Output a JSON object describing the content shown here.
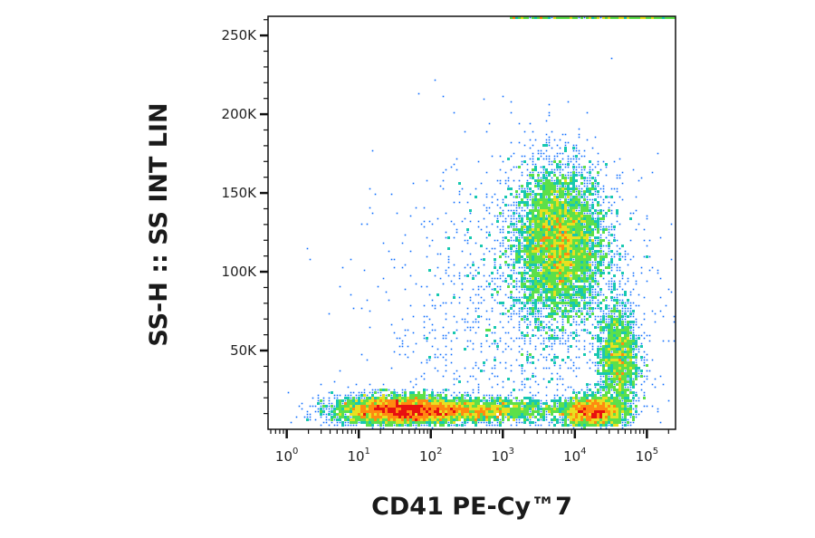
{
  "chart_data": {
    "type": "scatter",
    "subtype": "flow-cytometry-density-dot-plot",
    "xlabel": "CD41 PE-Cy™7",
    "ylabel": "SS-H :: SS INT LIN",
    "x_scale": "log",
    "x_ticks": [
      {
        "value": 1,
        "base": "10",
        "exp": "0"
      },
      {
        "value": 10,
        "base": "10",
        "exp": "1"
      },
      {
        "value": 100,
        "base": "10",
        "exp": "2"
      },
      {
        "value": 1000,
        "base": "10",
        "exp": "3"
      },
      {
        "value": 10000,
        "base": "10",
        "exp": "4"
      },
      {
        "value": 100000,
        "base": "10",
        "exp": "5"
      }
    ],
    "y_scale": "linear",
    "y_ticks": [
      {
        "value": 50000,
        "label": "50K"
      },
      {
        "value": 100000,
        "label": "100K"
      },
      {
        "value": 150000,
        "label": "150K"
      },
      {
        "value": 200000,
        "label": "200K"
      },
      {
        "value": 250000,
        "label": "250K"
      }
    ],
    "xlim": [
      0.55,
      250000
    ],
    "ylim": [
      0,
      262144
    ],
    "grid": false,
    "legend": "none",
    "color_scale": [
      "#0000c8",
      "#0a6cff",
      "#18c8b0",
      "#5ce04a",
      "#e8e020",
      "#ff8a10",
      "#e81010"
    ],
    "populations": [
      {
        "center_x": 6000,
        "center_y": 118000,
        "spread_log_x": 0.33,
        "spread_y": 25000,
        "points": 5200,
        "peak_color": "#5ce04a"
      },
      {
        "center_x": 35,
        "center_y": 12000,
        "spread_log_x": 0.45,
        "spread_y": 5000,
        "points": 3600,
        "peak_color": "#e81010"
      },
      {
        "center_x": 18000,
        "center_y": 11000,
        "spread_log_x": 0.25,
        "spread_y": 5000,
        "points": 1800,
        "peak_color": "#e81010"
      },
      {
        "center_x": 400,
        "center_y": 12000,
        "spread_log_x": 0.6,
        "spread_y": 4000,
        "points": 1800,
        "peak_color": "#18c8b0"
      },
      {
        "center_x": 40000,
        "center_y": 45000,
        "spread_log_x": 0.15,
        "spread_y": 18000,
        "points": 1500,
        "peak_color": "#18c8b0"
      },
      {
        "center_x": 2000,
        "center_y": 70000,
        "spread_log_x": 1.0,
        "spread_y": 50000,
        "points": 1400,
        "peak_color": "#0000c8"
      }
    ]
  }
}
